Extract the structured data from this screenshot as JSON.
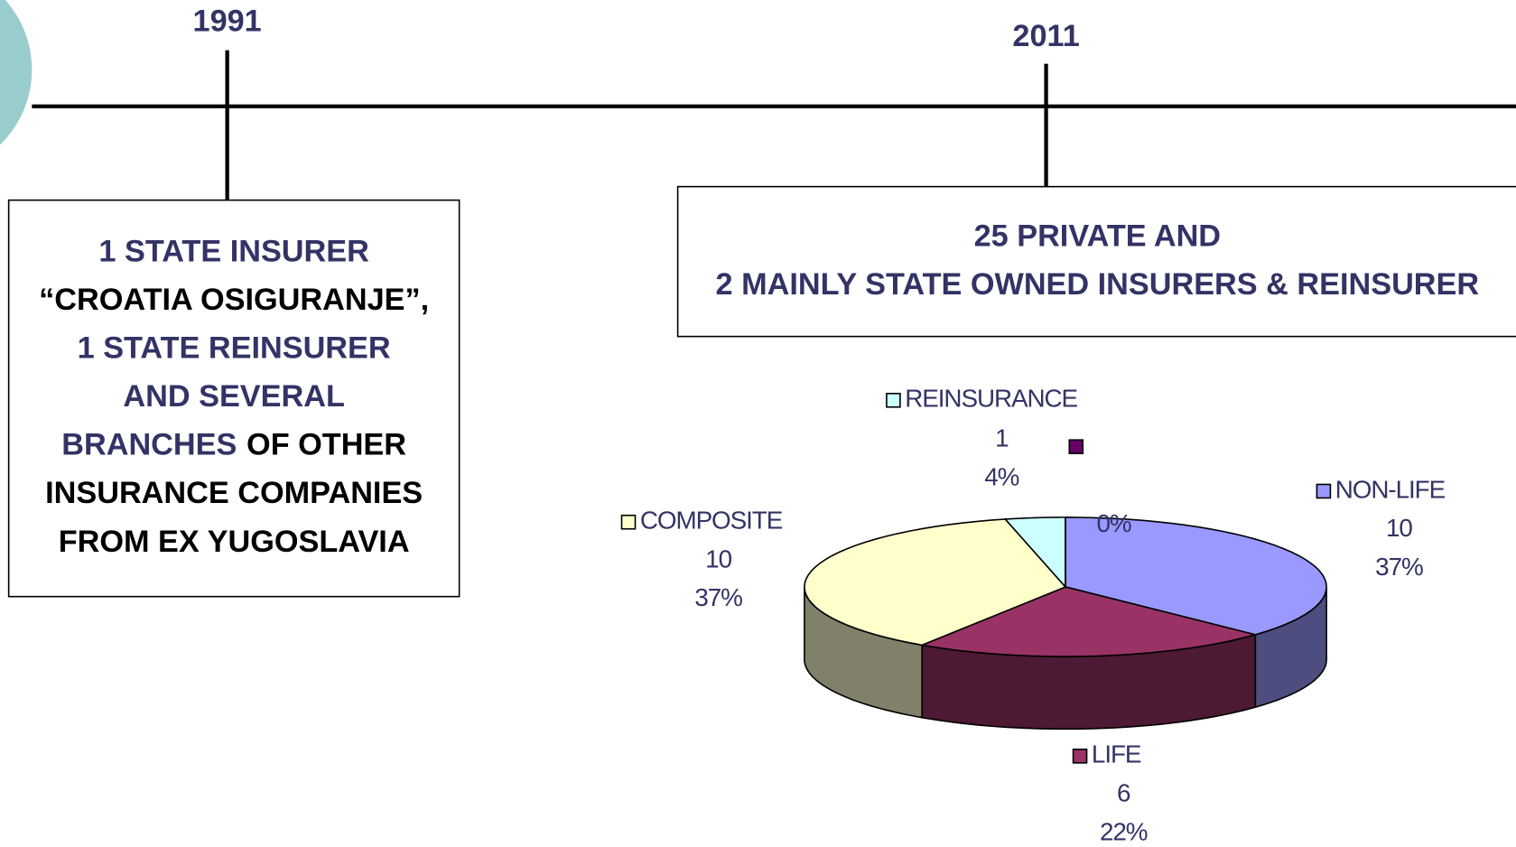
{
  "timeline": {
    "marks": [
      {
        "year": "1991",
        "lines": [
          [
            {
              "text": "1 STATE INSURER",
              "color": "#333366"
            }
          ],
          [
            {
              "text": "“CROATIA OSIGURANJE”,",
              "color": "#000000"
            }
          ],
          [
            {
              "text": "1 STATE REINSURER",
              "color": "#333366"
            }
          ],
          [
            {
              "text": "AND SEVERAL",
              "color": "#333366"
            }
          ],
          [
            {
              "text": "BRANCHES",
              "color": "#333366"
            },
            {
              "text": "OF OTHER",
              "color": "#000000"
            }
          ],
          [
            {
              "text": "INSURANCE COMPANIES",
              "color": "#000000"
            }
          ],
          [
            {
              "text": "FROM EX YUGOSLAVIA",
              "color": "#000000"
            }
          ]
        ]
      },
      {
        "year": "2011",
        "lines": [
          [
            {
              "text": "25 PRIVATE AND",
              "color": "#333366"
            }
          ],
          [
            {
              "text": "2 MAINLY STATE OWNED INSURERS & REINSURER",
              "color": "#333366"
            }
          ]
        ]
      }
    ]
  },
  "chart_data": {
    "type": "pie3d",
    "categories": [
      "NON-LIFE",
      "LIFE",
      "COMPOSITE",
      "REINSURANCE",
      null
    ],
    "values": [
      10,
      6,
      10,
      1,
      0
    ],
    "percents": [
      37,
      22,
      37,
      4,
      0
    ],
    "percent_labels": [
      "37%",
      "22%",
      "37%",
      "4%",
      "0%"
    ],
    "colors": [
      "#9999ff",
      "#993366",
      "#ffffcc",
      "#ccffff",
      "#660066"
    ],
    "side_colors": [
      "#4d4d80",
      "#4d1933",
      "#80806b",
      "#668080",
      "#330033"
    ]
  }
}
